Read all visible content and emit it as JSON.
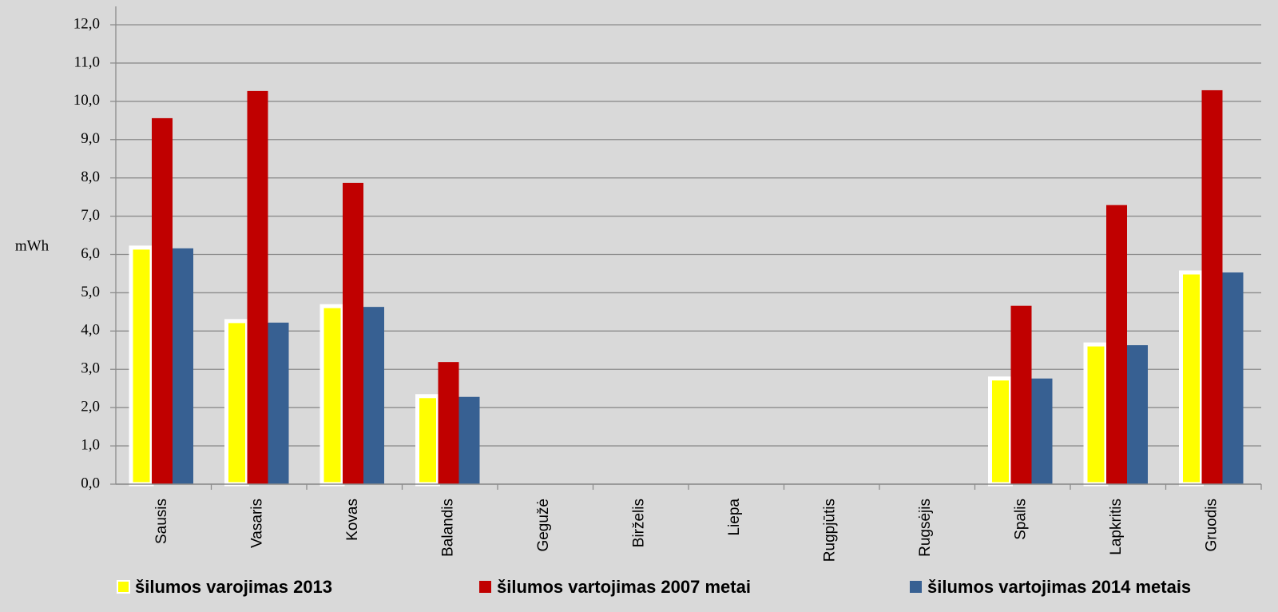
{
  "chart_data": {
    "type": "bar",
    "y_axis_label": "mWh",
    "categories": [
      "Sausis",
      "Vasaris",
      "Kovas",
      "Balandis",
      "Gegužė",
      "Birželis",
      "Liepa",
      "Rugpjūtis",
      "Rugsėjis",
      "Spalis",
      "Lapkritis",
      "Gruodis"
    ],
    "series": [
      {
        "name": "šilumos varojimas 2013",
        "color": "#ffff00",
        "values": [
          6.18,
          4.26,
          4.65,
          2.3,
          0,
          0,
          0,
          0,
          0,
          2.76,
          3.65,
          5.53
        ]
      },
      {
        "name": "šilumos vartojimas 2007 metai",
        "color": "#c00000",
        "values": [
          9.56,
          10.27,
          7.87,
          3.19,
          0,
          0,
          0,
          0,
          0,
          4.66,
          7.29,
          10.29
        ]
      },
      {
        "name": "šilumos vartojimas 2014 metais",
        "color": "#376092",
        "values": [
          6.16,
          4.22,
          4.63,
          2.28,
          0,
          0,
          0,
          0,
          0,
          2.76,
          3.63,
          5.53
        ]
      }
    ],
    "ylim": [
      0,
      12
    ],
    "yticks": [
      {
        "value": 0,
        "label": "0,0"
      },
      {
        "value": 1,
        "label": "1,0"
      },
      {
        "value": 2,
        "label": "2,0"
      },
      {
        "value": 3,
        "label": "3,0"
      },
      {
        "value": 4,
        "label": "4,0"
      },
      {
        "value": 5,
        "label": "5,0"
      },
      {
        "value": 6,
        "label": "6,0"
      },
      {
        "value": 7,
        "label": "7,0"
      },
      {
        "value": 8,
        "label": "8,0"
      },
      {
        "value": 9,
        "label": "9,0"
      },
      {
        "value": 10,
        "label": "10,0"
      },
      {
        "value": 11,
        "label": "11,0"
      },
      {
        "value": 12,
        "label": "12,0"
      }
    ],
    "grid": true,
    "legend": "bottom"
  }
}
